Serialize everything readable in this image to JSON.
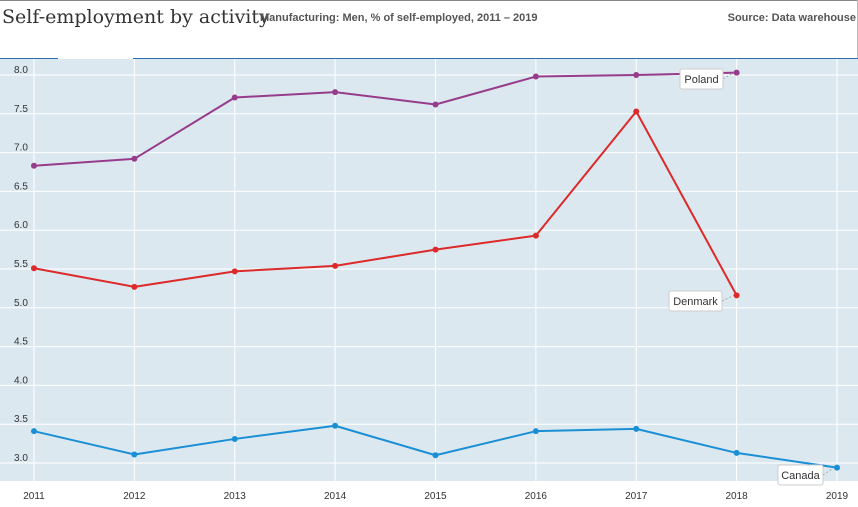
{
  "header": {
    "title": "Self-employment by activity",
    "subtitle": "Manufacturing: Men, % of self-employed, 2011 – 2019",
    "source": "Source: Data warehouse"
  },
  "chart_data": {
    "type": "line",
    "x": [
      "2011",
      "2012",
      "2013",
      "2014",
      "2015",
      "2016",
      "2017",
      "2018",
      "2019"
    ],
    "ylim": [
      2.9,
      8.2
    ],
    "yticks": [
      "3.0",
      "3.5",
      "4.0",
      "4.5",
      "5.0",
      "5.5",
      "6.0",
      "6.5",
      "7.0",
      "7.5",
      "8.0"
    ],
    "grid": true,
    "series": [
      {
        "name": "Poland",
        "color": "#973c8a",
        "values": [
          6.83,
          6.92,
          7.71,
          7.78,
          7.62,
          7.98,
          8.0,
          8.03,
          null
        ]
      },
      {
        "name": "Denmark",
        "color": "#dc2a2a",
        "values": [
          5.51,
          5.27,
          5.47,
          5.54,
          5.75,
          5.93,
          7.53,
          5.16,
          null
        ]
      },
      {
        "name": "Canada",
        "color": "#1a8fd5",
        "values": [
          3.41,
          3.11,
          3.31,
          3.48,
          3.1,
          3.41,
          3.44,
          3.13,
          2.94
        ]
      }
    ]
  }
}
